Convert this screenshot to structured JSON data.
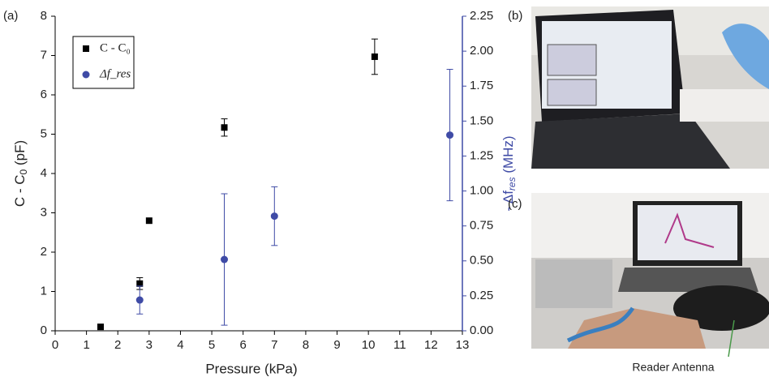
{
  "chart_data": {
    "type": "scatter",
    "panel_label": "(a)",
    "x_label": "Pressure (kPa)",
    "y_label": {
      "main": "C - C",
      "sub": "0",
      "unit": " (pF)"
    },
    "y2_label": {
      "main": "- Δf",
      "sub": "res",
      "unit": " (MHz)"
    },
    "xlim": [
      0,
      13
    ],
    "xticks": [
      0,
      1,
      2,
      3,
      4,
      5,
      6,
      7,
      8,
      9,
      10,
      11,
      12,
      13
    ],
    "ylim": [
      0,
      8
    ],
    "yticks": [
      0,
      1,
      2,
      3,
      4,
      5,
      6,
      7,
      8
    ],
    "y2lim": [
      0,
      2.25
    ],
    "y2ticks": [
      {
        "value": 0,
        "label": "0.00"
      },
      {
        "value": 0.25,
        "label": "0.25"
      },
      {
        "value": 0.5,
        "label": "0.50"
      },
      {
        "value": 0.75,
        "label": "0.75"
      },
      {
        "value": 1,
        "label": "1.00"
      },
      {
        "value": 1.25,
        "label": "1.25"
      },
      {
        "value": 1.5,
        "label": "1.50"
      },
      {
        "value": 1.75,
        "label": "1.75"
      },
      {
        "value": 2,
        "label": "2.00"
      },
      {
        "value": 2.25,
        "label": "2.25"
      }
    ],
    "legend_position": "upper left",
    "series": [
      {
        "name": "C - C₀",
        "color": "#000000",
        "marker": "square",
        "x": [
          1.45,
          2.7,
          3.0,
          5.4,
          10.2
        ],
        "values": [
          0.1,
          1.2,
          2.8,
          5.17,
          6.97
        ],
        "errors": [
          null,
          0.15,
          null,
          0.22,
          0.45
        ]
      },
      {
        "name": "Δf_res",
        "color": "#3f4ba6",
        "marker": "circle",
        "axis": "y2",
        "x": [
          2.7,
          5.4,
          7.0,
          12.6
        ],
        "values": [
          0.22,
          0.51,
          0.82,
          1.4
        ],
        "errors": [
          0.1,
          0.47,
          0.21,
          0.47
        ]
      }
    ]
  },
  "photos": {
    "b_label": "(b)",
    "c_label": "(c)",
    "annotation": "Reader Antenna"
  }
}
